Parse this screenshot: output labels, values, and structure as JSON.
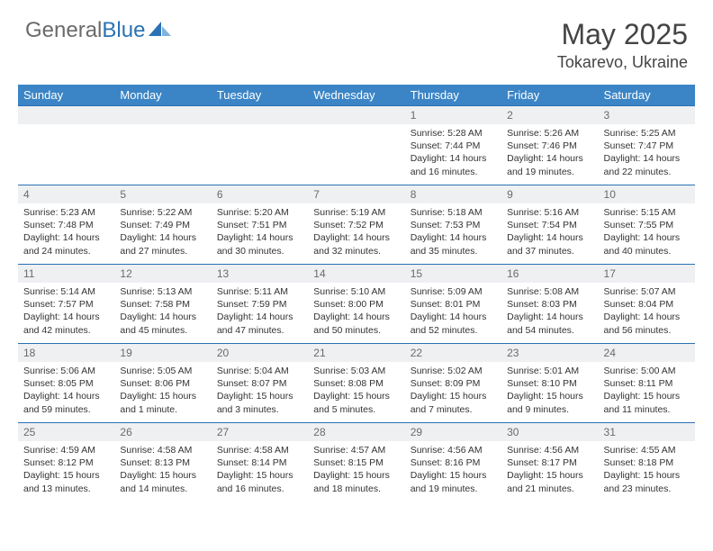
{
  "logo": {
    "general": "General",
    "blue": "Blue"
  },
  "title": {
    "month": "May 2025",
    "location": "Tokarevo, Ukraine"
  },
  "colors": {
    "header_bg": "#3b85c6",
    "border": "#2a72b5",
    "daynum_bg": "#eef0f2",
    "text": "#333333",
    "logo_gray": "#6a6a6a",
    "logo_blue": "#2a72b5"
  },
  "weekdays": [
    "Sunday",
    "Monday",
    "Tuesday",
    "Wednesday",
    "Thursday",
    "Friday",
    "Saturday"
  ],
  "weeks": [
    [
      null,
      null,
      null,
      null,
      {
        "n": "1",
        "sr": "Sunrise: 5:28 AM",
        "ss": "Sunset: 7:44 PM",
        "dl1": "Daylight: 14 hours",
        "dl2": "and 16 minutes."
      },
      {
        "n": "2",
        "sr": "Sunrise: 5:26 AM",
        "ss": "Sunset: 7:46 PM",
        "dl1": "Daylight: 14 hours",
        "dl2": "and 19 minutes."
      },
      {
        "n": "3",
        "sr": "Sunrise: 5:25 AM",
        "ss": "Sunset: 7:47 PM",
        "dl1": "Daylight: 14 hours",
        "dl2": "and 22 minutes."
      }
    ],
    [
      {
        "n": "4",
        "sr": "Sunrise: 5:23 AM",
        "ss": "Sunset: 7:48 PM",
        "dl1": "Daylight: 14 hours",
        "dl2": "and 24 minutes."
      },
      {
        "n": "5",
        "sr": "Sunrise: 5:22 AM",
        "ss": "Sunset: 7:49 PM",
        "dl1": "Daylight: 14 hours",
        "dl2": "and 27 minutes."
      },
      {
        "n": "6",
        "sr": "Sunrise: 5:20 AM",
        "ss": "Sunset: 7:51 PM",
        "dl1": "Daylight: 14 hours",
        "dl2": "and 30 minutes."
      },
      {
        "n": "7",
        "sr": "Sunrise: 5:19 AM",
        "ss": "Sunset: 7:52 PM",
        "dl1": "Daylight: 14 hours",
        "dl2": "and 32 minutes."
      },
      {
        "n": "8",
        "sr": "Sunrise: 5:18 AM",
        "ss": "Sunset: 7:53 PM",
        "dl1": "Daylight: 14 hours",
        "dl2": "and 35 minutes."
      },
      {
        "n": "9",
        "sr": "Sunrise: 5:16 AM",
        "ss": "Sunset: 7:54 PM",
        "dl1": "Daylight: 14 hours",
        "dl2": "and 37 minutes."
      },
      {
        "n": "10",
        "sr": "Sunrise: 5:15 AM",
        "ss": "Sunset: 7:55 PM",
        "dl1": "Daylight: 14 hours",
        "dl2": "and 40 minutes."
      }
    ],
    [
      {
        "n": "11",
        "sr": "Sunrise: 5:14 AM",
        "ss": "Sunset: 7:57 PM",
        "dl1": "Daylight: 14 hours",
        "dl2": "and 42 minutes."
      },
      {
        "n": "12",
        "sr": "Sunrise: 5:13 AM",
        "ss": "Sunset: 7:58 PM",
        "dl1": "Daylight: 14 hours",
        "dl2": "and 45 minutes."
      },
      {
        "n": "13",
        "sr": "Sunrise: 5:11 AM",
        "ss": "Sunset: 7:59 PM",
        "dl1": "Daylight: 14 hours",
        "dl2": "and 47 minutes."
      },
      {
        "n": "14",
        "sr": "Sunrise: 5:10 AM",
        "ss": "Sunset: 8:00 PM",
        "dl1": "Daylight: 14 hours",
        "dl2": "and 50 minutes."
      },
      {
        "n": "15",
        "sr": "Sunrise: 5:09 AM",
        "ss": "Sunset: 8:01 PM",
        "dl1": "Daylight: 14 hours",
        "dl2": "and 52 minutes."
      },
      {
        "n": "16",
        "sr": "Sunrise: 5:08 AM",
        "ss": "Sunset: 8:03 PM",
        "dl1": "Daylight: 14 hours",
        "dl2": "and 54 minutes."
      },
      {
        "n": "17",
        "sr": "Sunrise: 5:07 AM",
        "ss": "Sunset: 8:04 PM",
        "dl1": "Daylight: 14 hours",
        "dl2": "and 56 minutes."
      }
    ],
    [
      {
        "n": "18",
        "sr": "Sunrise: 5:06 AM",
        "ss": "Sunset: 8:05 PM",
        "dl1": "Daylight: 14 hours",
        "dl2": "and 59 minutes."
      },
      {
        "n": "19",
        "sr": "Sunrise: 5:05 AM",
        "ss": "Sunset: 8:06 PM",
        "dl1": "Daylight: 15 hours",
        "dl2": "and 1 minute."
      },
      {
        "n": "20",
        "sr": "Sunrise: 5:04 AM",
        "ss": "Sunset: 8:07 PM",
        "dl1": "Daylight: 15 hours",
        "dl2": "and 3 minutes."
      },
      {
        "n": "21",
        "sr": "Sunrise: 5:03 AM",
        "ss": "Sunset: 8:08 PM",
        "dl1": "Daylight: 15 hours",
        "dl2": "and 5 minutes."
      },
      {
        "n": "22",
        "sr": "Sunrise: 5:02 AM",
        "ss": "Sunset: 8:09 PM",
        "dl1": "Daylight: 15 hours",
        "dl2": "and 7 minutes."
      },
      {
        "n": "23",
        "sr": "Sunrise: 5:01 AM",
        "ss": "Sunset: 8:10 PM",
        "dl1": "Daylight: 15 hours",
        "dl2": "and 9 minutes."
      },
      {
        "n": "24",
        "sr": "Sunrise: 5:00 AM",
        "ss": "Sunset: 8:11 PM",
        "dl1": "Daylight: 15 hours",
        "dl2": "and 11 minutes."
      }
    ],
    [
      {
        "n": "25",
        "sr": "Sunrise: 4:59 AM",
        "ss": "Sunset: 8:12 PM",
        "dl1": "Daylight: 15 hours",
        "dl2": "and 13 minutes."
      },
      {
        "n": "26",
        "sr": "Sunrise: 4:58 AM",
        "ss": "Sunset: 8:13 PM",
        "dl1": "Daylight: 15 hours",
        "dl2": "and 14 minutes."
      },
      {
        "n": "27",
        "sr": "Sunrise: 4:58 AM",
        "ss": "Sunset: 8:14 PM",
        "dl1": "Daylight: 15 hours",
        "dl2": "and 16 minutes."
      },
      {
        "n": "28",
        "sr": "Sunrise: 4:57 AM",
        "ss": "Sunset: 8:15 PM",
        "dl1": "Daylight: 15 hours",
        "dl2": "and 18 minutes."
      },
      {
        "n": "29",
        "sr": "Sunrise: 4:56 AM",
        "ss": "Sunset: 8:16 PM",
        "dl1": "Daylight: 15 hours",
        "dl2": "and 19 minutes."
      },
      {
        "n": "30",
        "sr": "Sunrise: 4:56 AM",
        "ss": "Sunset: 8:17 PM",
        "dl1": "Daylight: 15 hours",
        "dl2": "and 21 minutes."
      },
      {
        "n": "31",
        "sr": "Sunrise: 4:55 AM",
        "ss": "Sunset: 8:18 PM",
        "dl1": "Daylight: 15 hours",
        "dl2": "and 23 minutes."
      }
    ]
  ]
}
